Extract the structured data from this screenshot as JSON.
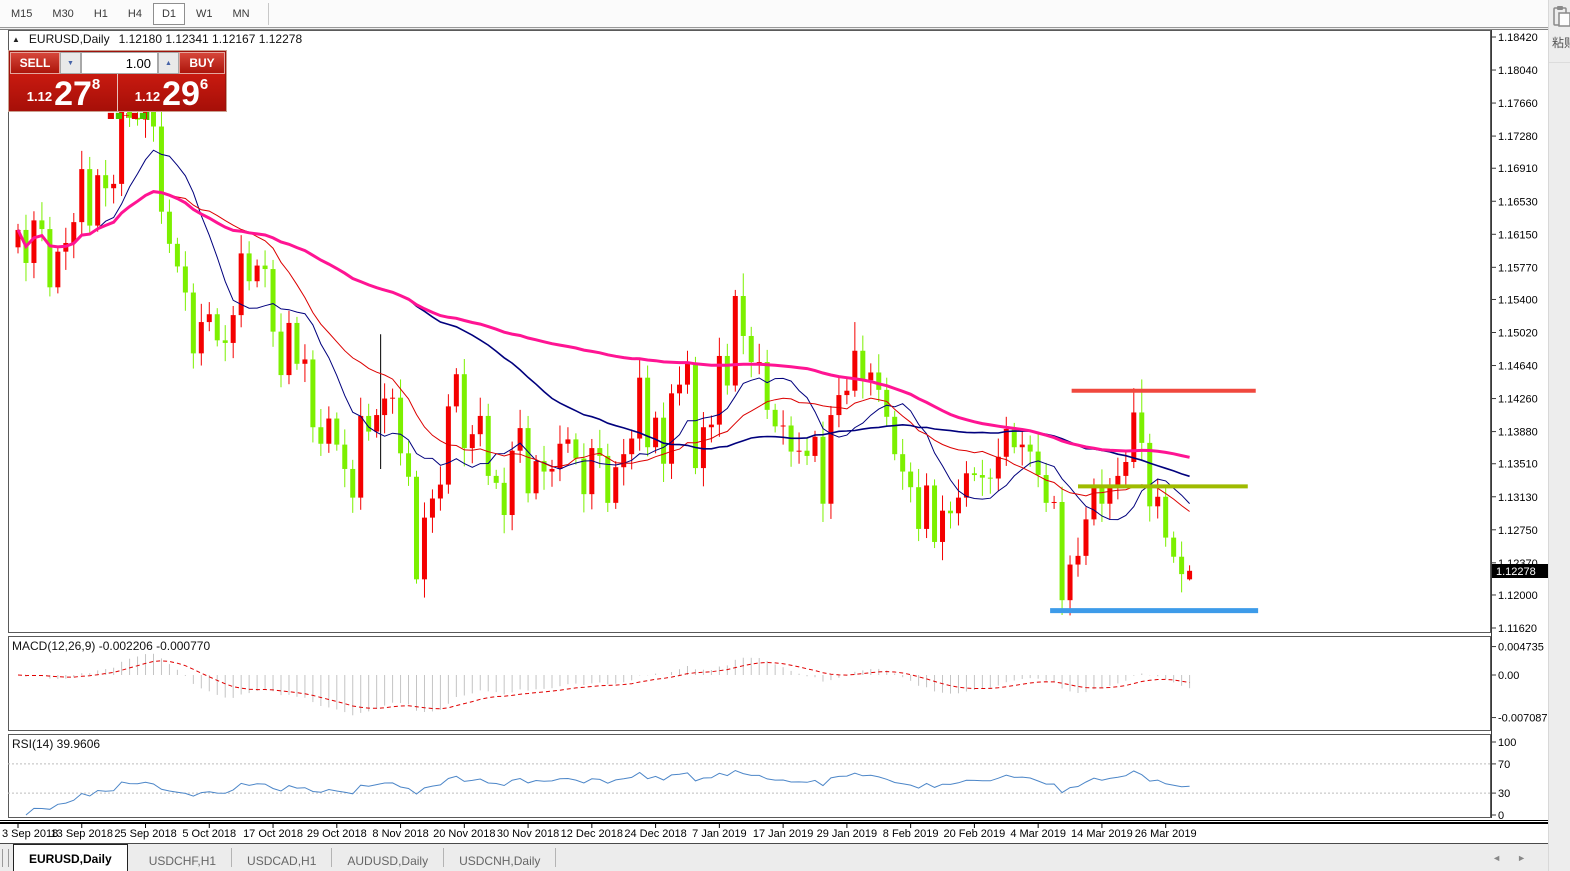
{
  "toolbar": {
    "timeframes": [
      {
        "label": "M15"
      },
      {
        "label": "M30"
      },
      {
        "label": "H1"
      },
      {
        "label": "H4"
      },
      {
        "label": "D1"
      },
      {
        "label": "W1"
      },
      {
        "label": "MN"
      }
    ],
    "active_timeframe": "D1"
  },
  "chart_header": {
    "symbol": "EURUSD,Daily",
    "ohlc": "1.12180 1.12341 1.12167 1.12278"
  },
  "trade_panel": {
    "sell_label": "SELL",
    "buy_label": "BUY",
    "volume": "1.00",
    "sell_price": {
      "prefix": "1.12",
      "big": "27",
      "sup": "8"
    },
    "buy_price": {
      "prefix": "1.12",
      "big": "29",
      "sup": "6"
    },
    "ticker": [
      {
        "glyph": "■",
        "color": "#E00000"
      },
      {
        "glyph": "■",
        "color": "#46C800"
      },
      {
        "glyph": "+",
        "color": "#E00000"
      },
      {
        "glyph": "■",
        "color": "#E00000"
      },
      {
        "glyph": "■",
        "color": "#46C800"
      },
      {
        "glyph": "▍",
        "color": "#46C800"
      }
    ]
  },
  "indicator_headers": {
    "macd": "MACD(12,26,9) -0.002206 -0.000770",
    "rsi": "RSI(14) 39.9606"
  },
  "price_badge": "1.12278",
  "side_overlay": {
    "paste_label": "粘贴"
  },
  "icons": {
    "collapse_arrow": "▲",
    "spin_up": "▲",
    "spin_down": "▼",
    "tab_scroll_left": "◄",
    "tab_scroll_right": "►"
  },
  "tabs": [
    {
      "label": "EURUSD,Daily",
      "active": true
    },
    {
      "label": "USDCHF,H1",
      "active": false
    },
    {
      "label": "USDCAD,H1",
      "active": false
    },
    {
      "label": "AUDUSD,Daily",
      "active": false
    },
    {
      "label": "USDCNH,Daily",
      "active": false
    }
  ],
  "chart_data": {
    "type": "candlestick",
    "symbol": "EURUSD",
    "timeframe": "Daily",
    "current_bar": {
      "open": 1.1218,
      "high": 1.12341,
      "low": 1.12167,
      "close": 1.12278
    },
    "y_axis_ticks": [
      "1.18420",
      "1.18040",
      "1.17660",
      "1.17280",
      "1.16910",
      "1.16530",
      "1.16150",
      "1.15770",
      "1.15400",
      "1.15020",
      "1.14640",
      "1.14260",
      "1.13880",
      "1.13510",
      "1.13130",
      "1.12750",
      "1.12370",
      "1.12000",
      "1.11620"
    ],
    "x_axis_labels": [
      {
        "index": 0,
        "label": "3 Sep 2018"
      },
      {
        "index": 8,
        "label": "13 Sep 2018"
      },
      {
        "index": 16,
        "label": "25 Sep 2018"
      },
      {
        "index": 24,
        "label": "5 Oct 2018"
      },
      {
        "index": 32,
        "label": "17 Oct 2018"
      },
      {
        "index": 40,
        "label": "29 Oct 2018"
      },
      {
        "index": 48,
        "label": "8 Nov 2018"
      },
      {
        "index": 56,
        "label": "20 Nov 2018"
      },
      {
        "index": 64,
        "label": "30 Nov 2018"
      },
      {
        "index": 72,
        "label": "12 Dec 2018"
      },
      {
        "index": 80,
        "label": "24 Dec 2018"
      },
      {
        "index": 88,
        "label": "7 Jan 2019"
      },
      {
        "index": 96,
        "label": "17 Jan 2019"
      },
      {
        "index": 104,
        "label": "29 Jan 2019"
      },
      {
        "index": 112,
        "label": "8 Feb 2019"
      },
      {
        "index": 120,
        "label": "20 Feb 2019"
      },
      {
        "index": 128,
        "label": "4 Mar 2019"
      },
      {
        "index": 136,
        "label": "14 Mar 2019"
      },
      {
        "index": 144,
        "label": "26 Mar 2019"
      }
    ],
    "first_open": 1.16,
    "closes": [
      1.162,
      1.1582,
      1.1631,
      1.1621,
      1.1554,
      1.1595,
      1.1605,
      1.1629,
      1.169,
      1.1625,
      1.1683,
      1.1668,
      1.1673,
      1.1778,
      1.1749,
      1.1747,
      1.1766,
      1.1739,
      1.1641,
      1.1604,
      1.1578,
      1.1548,
      1.1478,
      1.1514,
      1.1523,
      1.1493,
      1.149,
      1.1522,
      1.1593,
      1.1561,
      1.1579,
      1.1575,
      1.1503,
      1.1453,
      1.1513,
      1.1466,
      1.1471,
      1.1393,
      1.1374,
      1.1403,
      1.1373,
      1.1345,
      1.1312,
      1.1406,
      1.1388,
      1.1407,
      1.1426,
      1.1427,
      1.1363,
      1.1336,
      1.1218,
      1.1289,
      1.1311,
      1.1327,
      1.1417,
      1.1454,
      1.1369,
      1.1385,
      1.1406,
      1.1337,
      1.1329,
      1.1292,
      1.1366,
      1.1392,
      1.1317,
      1.1354,
      1.1342,
      1.1345,
      1.1374,
      1.1379,
      1.1357,
      1.1316,
      1.1369,
      1.136,
      1.1306,
      1.1347,
      1.1362,
      1.138,
      1.145,
      1.137,
      1.1404,
      1.1351,
      1.1432,
      1.1442,
      1.1467,
      1.1346,
      1.1393,
      1.1396,
      1.1475,
      1.1441,
      1.1544,
      1.1498,
      1.1468,
      1.1468,
      1.1413,
      1.1394,
      1.1395,
      1.1365,
      1.1366,
      1.136,
      1.1382,
      1.1305,
      1.1407,
      1.143,
      1.1435,
      1.1481,
      1.1447,
      1.1456,
      1.1436,
      1.1405,
      1.1362,
      1.1342,
      1.1324,
      1.1276,
      1.1326,
      1.1261,
      1.1297,
      1.1294,
      1.1312,
      1.134,
      1.1338,
      1.1335,
      1.1334,
      1.1359,
      1.1391,
      1.137,
      1.1373,
      1.1365,
      1.1338,
      1.1306,
      1.1307,
      1.1194,
      1.1235,
      1.1245,
      1.1287,
      1.1327,
      1.1305,
      1.1324,
      1.1337,
      1.1353,
      1.141,
      1.1375,
      1.1302,
      1.1313,
      1.1266,
      1.1244,
      1.1224,
      1.12278
    ],
    "wick_overrides": {
      "13": {
        "high": 1.179
      },
      "16": {
        "high": 1.1815
      },
      "50": {
        "low": 1.1213
      },
      "91": {
        "high": 1.157
      },
      "105": {
        "high": 1.1514
      },
      "131": {
        "low": 1.1177
      },
      "140": {
        "high": 1.1438
      },
      "141": {
        "high": 1.1448
      },
      "147": {
        "open": 1.1218,
        "high": 1.12341,
        "low": 1.12167
      }
    },
    "moving_averages": [
      {
        "period": 10,
        "color": "#00007D",
        "width": 1
      },
      {
        "period": 20,
        "color": "#DC0000",
        "width": 1
      },
      {
        "period": 50,
        "color": "#00007D",
        "width": 1.6
      },
      {
        "period": 100,
        "color": "#FF1493",
        "width": 3
      }
    ],
    "macd": {
      "fast": 12,
      "slow": 26,
      "signal": 9,
      "current": -0.002206,
      "current_signal": -0.00077,
      "axis_ticks": [
        "0.004735",
        "0.00",
        "-0.007087"
      ],
      "histogram_color": "#C4C4C4",
      "signal_color": "#E00000"
    },
    "rsi": {
      "period": 14,
      "current": 39.9606,
      "axis_ticks": [
        "100",
        "70",
        "30",
        "0"
      ],
      "levels": [
        70,
        30
      ],
      "line_color": "#4C86C8",
      "level_color": "#BEBEBE"
    },
    "objects": {
      "horizontal_lines": [
        {
          "price": 1.1435,
          "from_index": 132.2,
          "to_index": 155.3,
          "color": "#F0483E",
          "width": 4
        },
        {
          "price": 1.1325,
          "from_index": 133.0,
          "to_index": 154.3,
          "color": "#9FBB00",
          "width": 4
        },
        {
          "price": 1.1182,
          "from_index": 129.5,
          "to_index": 155.6,
          "color": "#3D9BE9",
          "width": 5
        }
      ],
      "vertical_segment": {
        "index": 45.5,
        "price_from": 1.15,
        "price_to": 1.1345,
        "color": "#000000"
      }
    },
    "colors": {
      "bull": "#F40000",
      "bear": "#7CF000",
      "background": "#FFFFFF"
    }
  }
}
